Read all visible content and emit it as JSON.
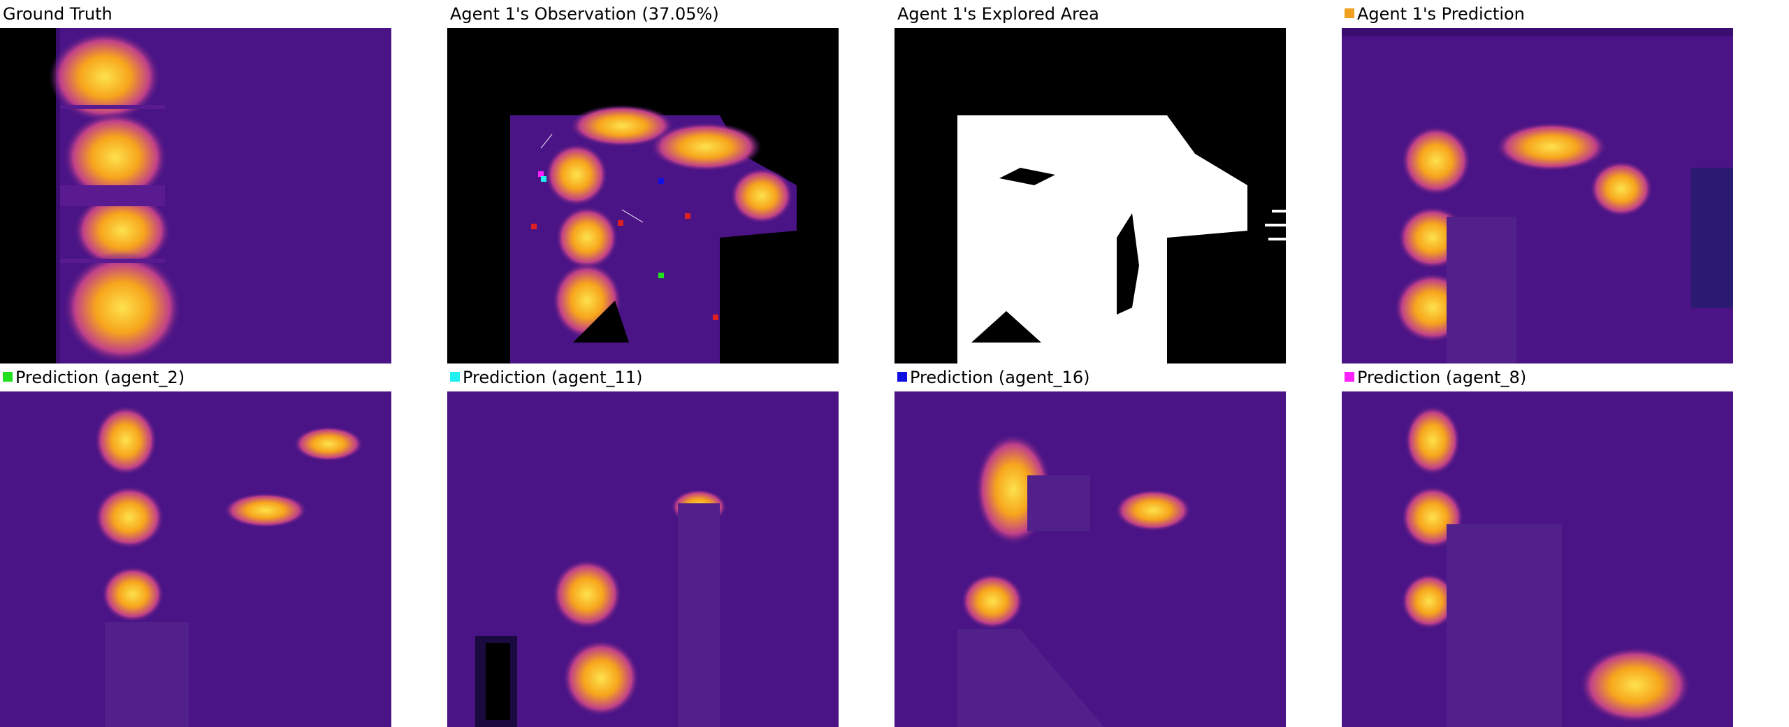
{
  "panels": [
    {
      "title": "Ground Truth",
      "swatch": null
    },
    {
      "title": "Agent 1's Observation (37.05%)",
      "swatch": null
    },
    {
      "title": "Agent 1's Explored Area",
      "swatch": null
    },
    {
      "title": "Agent 1's Prediction",
      "swatch": "#f0a020"
    },
    {
      "title": "Prediction (agent_2)",
      "swatch": "#20e020"
    },
    {
      "title": "Prediction (agent_11)",
      "swatch": "#20f0f0"
    },
    {
      "title": "Prediction (agent_16)",
      "swatch": "#1010e0"
    },
    {
      "title": "Prediction (agent_8)",
      "swatch": "#ff20ff"
    }
  ],
  "colors": {
    "background_purple": "#4a1486",
    "dark_purple": "#2d0a5c",
    "hot_orange": "#f7a51c",
    "hot_yellow": "#fde24d",
    "mid_magenta": "#b5367a",
    "explored_white": "#ffffff",
    "unexplored_black": "#000000"
  }
}
